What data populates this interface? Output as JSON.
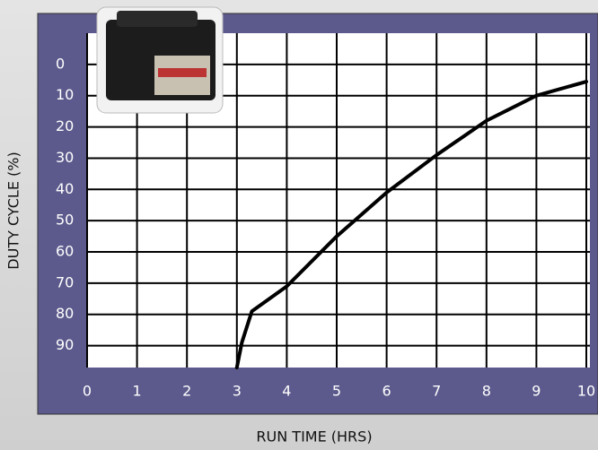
{
  "chart_data": {
    "type": "line",
    "x_label": "RUN TIME (HRS)",
    "y_label": "DUTY CYCLE (%)",
    "x": [
      3,
      3.1,
      3.3,
      4,
      5,
      6,
      7,
      8,
      9,
      10
    ],
    "series": [
      {
        "color": "#000000",
        "values": [
          97,
          89,
          79,
          71,
          55,
          41,
          29,
          18,
          10,
          5.5
        ]
      }
    ],
    "xlim": [
      0,
      10
    ],
    "xticks": [
      0,
      1,
      2,
      3,
      4,
      5,
      6,
      7,
      8,
      9,
      10
    ],
    "ylim": [
      97,
      -10
    ],
    "yticks": [
      0,
      10,
      20,
      30,
      40,
      50,
      60,
      70,
      80,
      90
    ],
    "grid": true
  }
}
